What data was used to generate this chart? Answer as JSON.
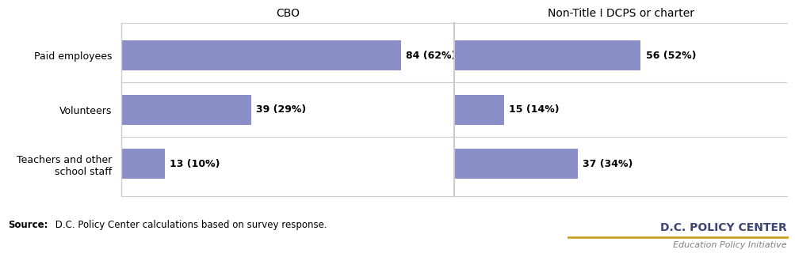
{
  "categories": [
    "Paid employees",
    "Volunteers",
    "Teachers and other\nschool staff"
  ],
  "cbo_values": [
    84,
    39,
    13
  ],
  "cbo_labels": [
    "84 (62%)",
    "39 (29%)",
    "13 (10%)"
  ],
  "non_title_values": [
    56,
    15,
    37
  ],
  "non_title_labels": [
    "56 (52%)",
    "15 (14%)",
    "37 (34%)"
  ],
  "bar_color": "#8B8FC8",
  "cbo_max": 100,
  "non_title_max": 100,
  "col1_title": "CBO",
  "col2_title": "Non-Title I DCPS or charter",
  "source_bold": "Source:",
  "source_text": " D.C. Policy Center calculations based on survey response.",
  "watermark_line1": "D.C. POLICY CENTER",
  "watermark_line2": "Education Policy Initiative",
  "watermark_color": "#3d4574",
  "watermark_line_color": "#c9a227",
  "background_color": "#ffffff",
  "grid_color": "#cccccc",
  "label_fontsize": 9,
  "tick_fontsize": 9,
  "header_fontsize": 10,
  "bar_height": 0.55
}
